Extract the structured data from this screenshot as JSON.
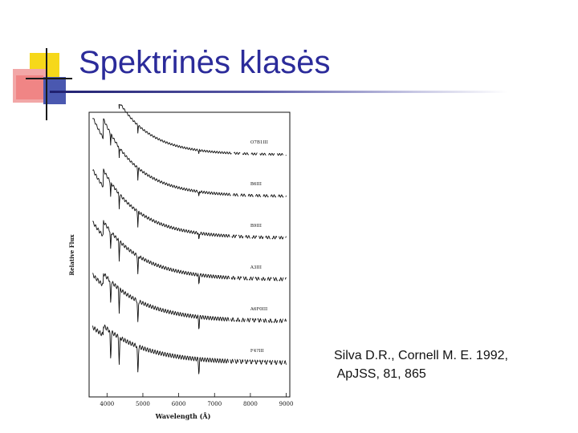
{
  "slide": {
    "title": "Spektrinės klasės",
    "citation_line1": "Silva D.R., Cornell M. E. 1992,",
    "citation_line2": " ApJSS, 81, 865"
  },
  "colors": {
    "title": "#2b2b9a",
    "deco_yellow": "#f6d81a",
    "deco_red": "#ef6a6a",
    "deco_blue": "#4a58b0",
    "rule": "#1f1f6f"
  },
  "chart_data": {
    "type": "line",
    "xlabel": "Wavelength (Å)",
    "ylabel": "Relative Flux",
    "xlim": [
      3500,
      9100
    ],
    "x_ticks": [
      4000,
      5000,
      6000,
      7000,
      8000,
      9000
    ],
    "grid": false,
    "series": [
      {
        "name": "O7B1III",
        "offset": 5.0
      },
      {
        "name": "B6III",
        "offset": 4.0
      },
      {
        "name": "B9III",
        "offset": 3.0
      },
      {
        "name": "A3III",
        "offset": 2.0
      },
      {
        "name": "A6F0III",
        "offset": 1.0
      },
      {
        "name": "F4?III",
        "offset": 0.0
      }
    ]
  }
}
